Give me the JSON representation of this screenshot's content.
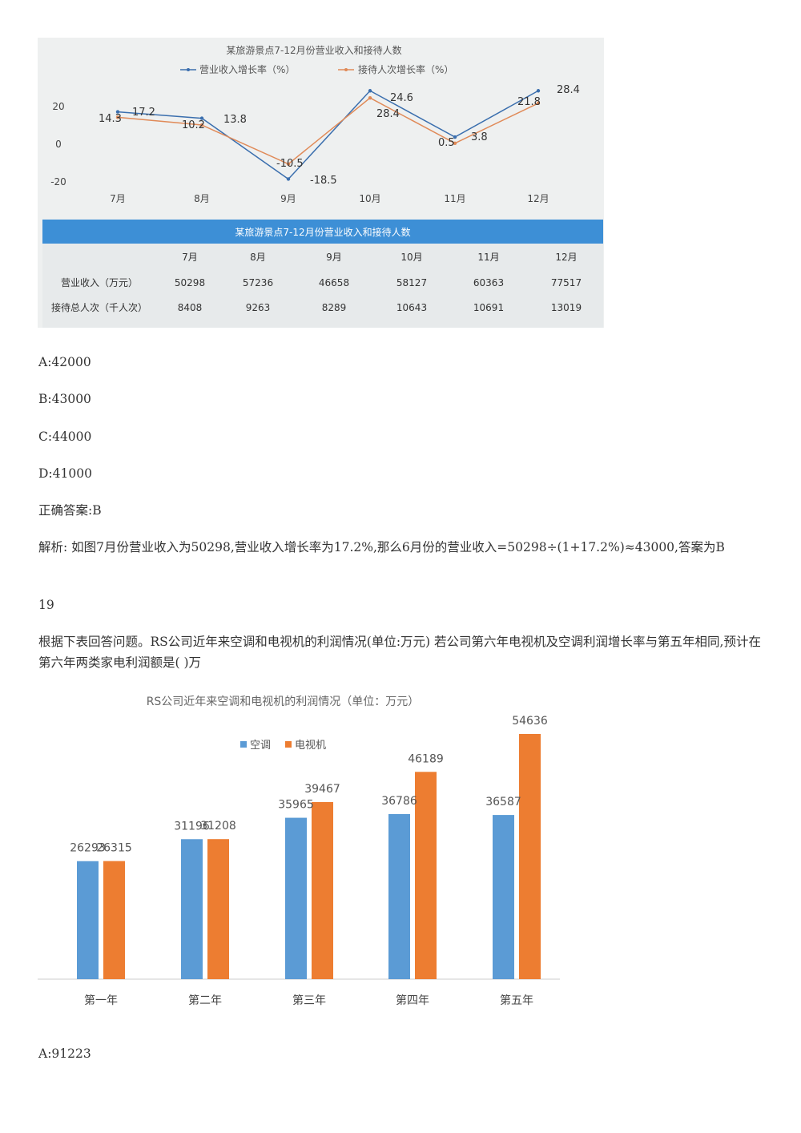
{
  "chart_data": [
    {
      "type": "line",
      "title": "某旅游景点7-12月份营业收入和接待人数",
      "categories": [
        "7月",
        "8月",
        "9月",
        "10月",
        "11月",
        "12月"
      ],
      "y_ticks": [
        "20",
        "0",
        "-20"
      ],
      "ylim": [
        -25,
        35
      ],
      "series": [
        {
          "name": "营业收入增长率（%）",
          "color": "#3b6fae",
          "values": [
            17.2,
            13.8,
            -18.5,
            28.4,
            3.8,
            28.4
          ]
        },
        {
          "name": "接待人次增长率（%）",
          "color": "#e08a58",
          "values": [
            14.3,
            10.2,
            -10.5,
            24.6,
            0.5,
            21.8
          ]
        }
      ],
      "data_labels": [
        "14.3",
        "17.2",
        "10.2",
        "13.8",
        "-10.5",
        "-18.5",
        "24.6",
        "28.4",
        "0.5",
        "3.8",
        "21.8",
        "28.4"
      ],
      "table": {
        "title": "某旅游景点7-12月份营业收入和接待人数",
        "header": [
          "7月",
          "8月",
          "9月",
          "10月",
          "11月",
          "12月"
        ],
        "rows": [
          {
            "label": "营业收入（万元）",
            "values": [
              "50298",
              "57236",
              "46658",
              "58127",
              "60363",
              "77517"
            ]
          },
          {
            "label": "接待总人次（千人次）",
            "values": [
              "8408",
              "9263",
              "8289",
              "10643",
              "10691",
              "13019"
            ]
          }
        ]
      }
    },
    {
      "type": "bar",
      "title": "RS公司近年来空调和电视机的利润情况（单位：万元）",
      "categories": [
        "第一年",
        "第二年",
        "第三年",
        "第四年",
        "第五年"
      ],
      "ylim": [
        0,
        60000
      ],
      "series": [
        {
          "name": "空调",
          "color": "#5b9bd5",
          "values": [
            26293,
            31196,
            35965,
            36786,
            36587
          ]
        },
        {
          "name": "电视机",
          "color": "#ed7d31",
          "values": [
            26315,
            31208,
            39467,
            46189,
            54636
          ]
        }
      ]
    }
  ],
  "text": {
    "opt_a": "A:42000",
    "opt_b": "B:43000",
    "opt_c": "C:44000",
    "opt_d": "D:41000",
    "answer": "正确答案:B",
    "analysis": "解析: 如图7月份营业收入为50298,营业收入增长率为17.2%,那么6月份的营业收入=50298÷(1+17.2%)≈43000,答案为B",
    "q_number": "19",
    "question": "根据下表回答问题。RS公司近年来空调和电视机的利润情况(单位:万元) 若公司第六年电视机及空调利润增长率与第五年相同,预计在第六年两类家电利润额是( )万",
    "opt_a2": "A:91223"
  }
}
